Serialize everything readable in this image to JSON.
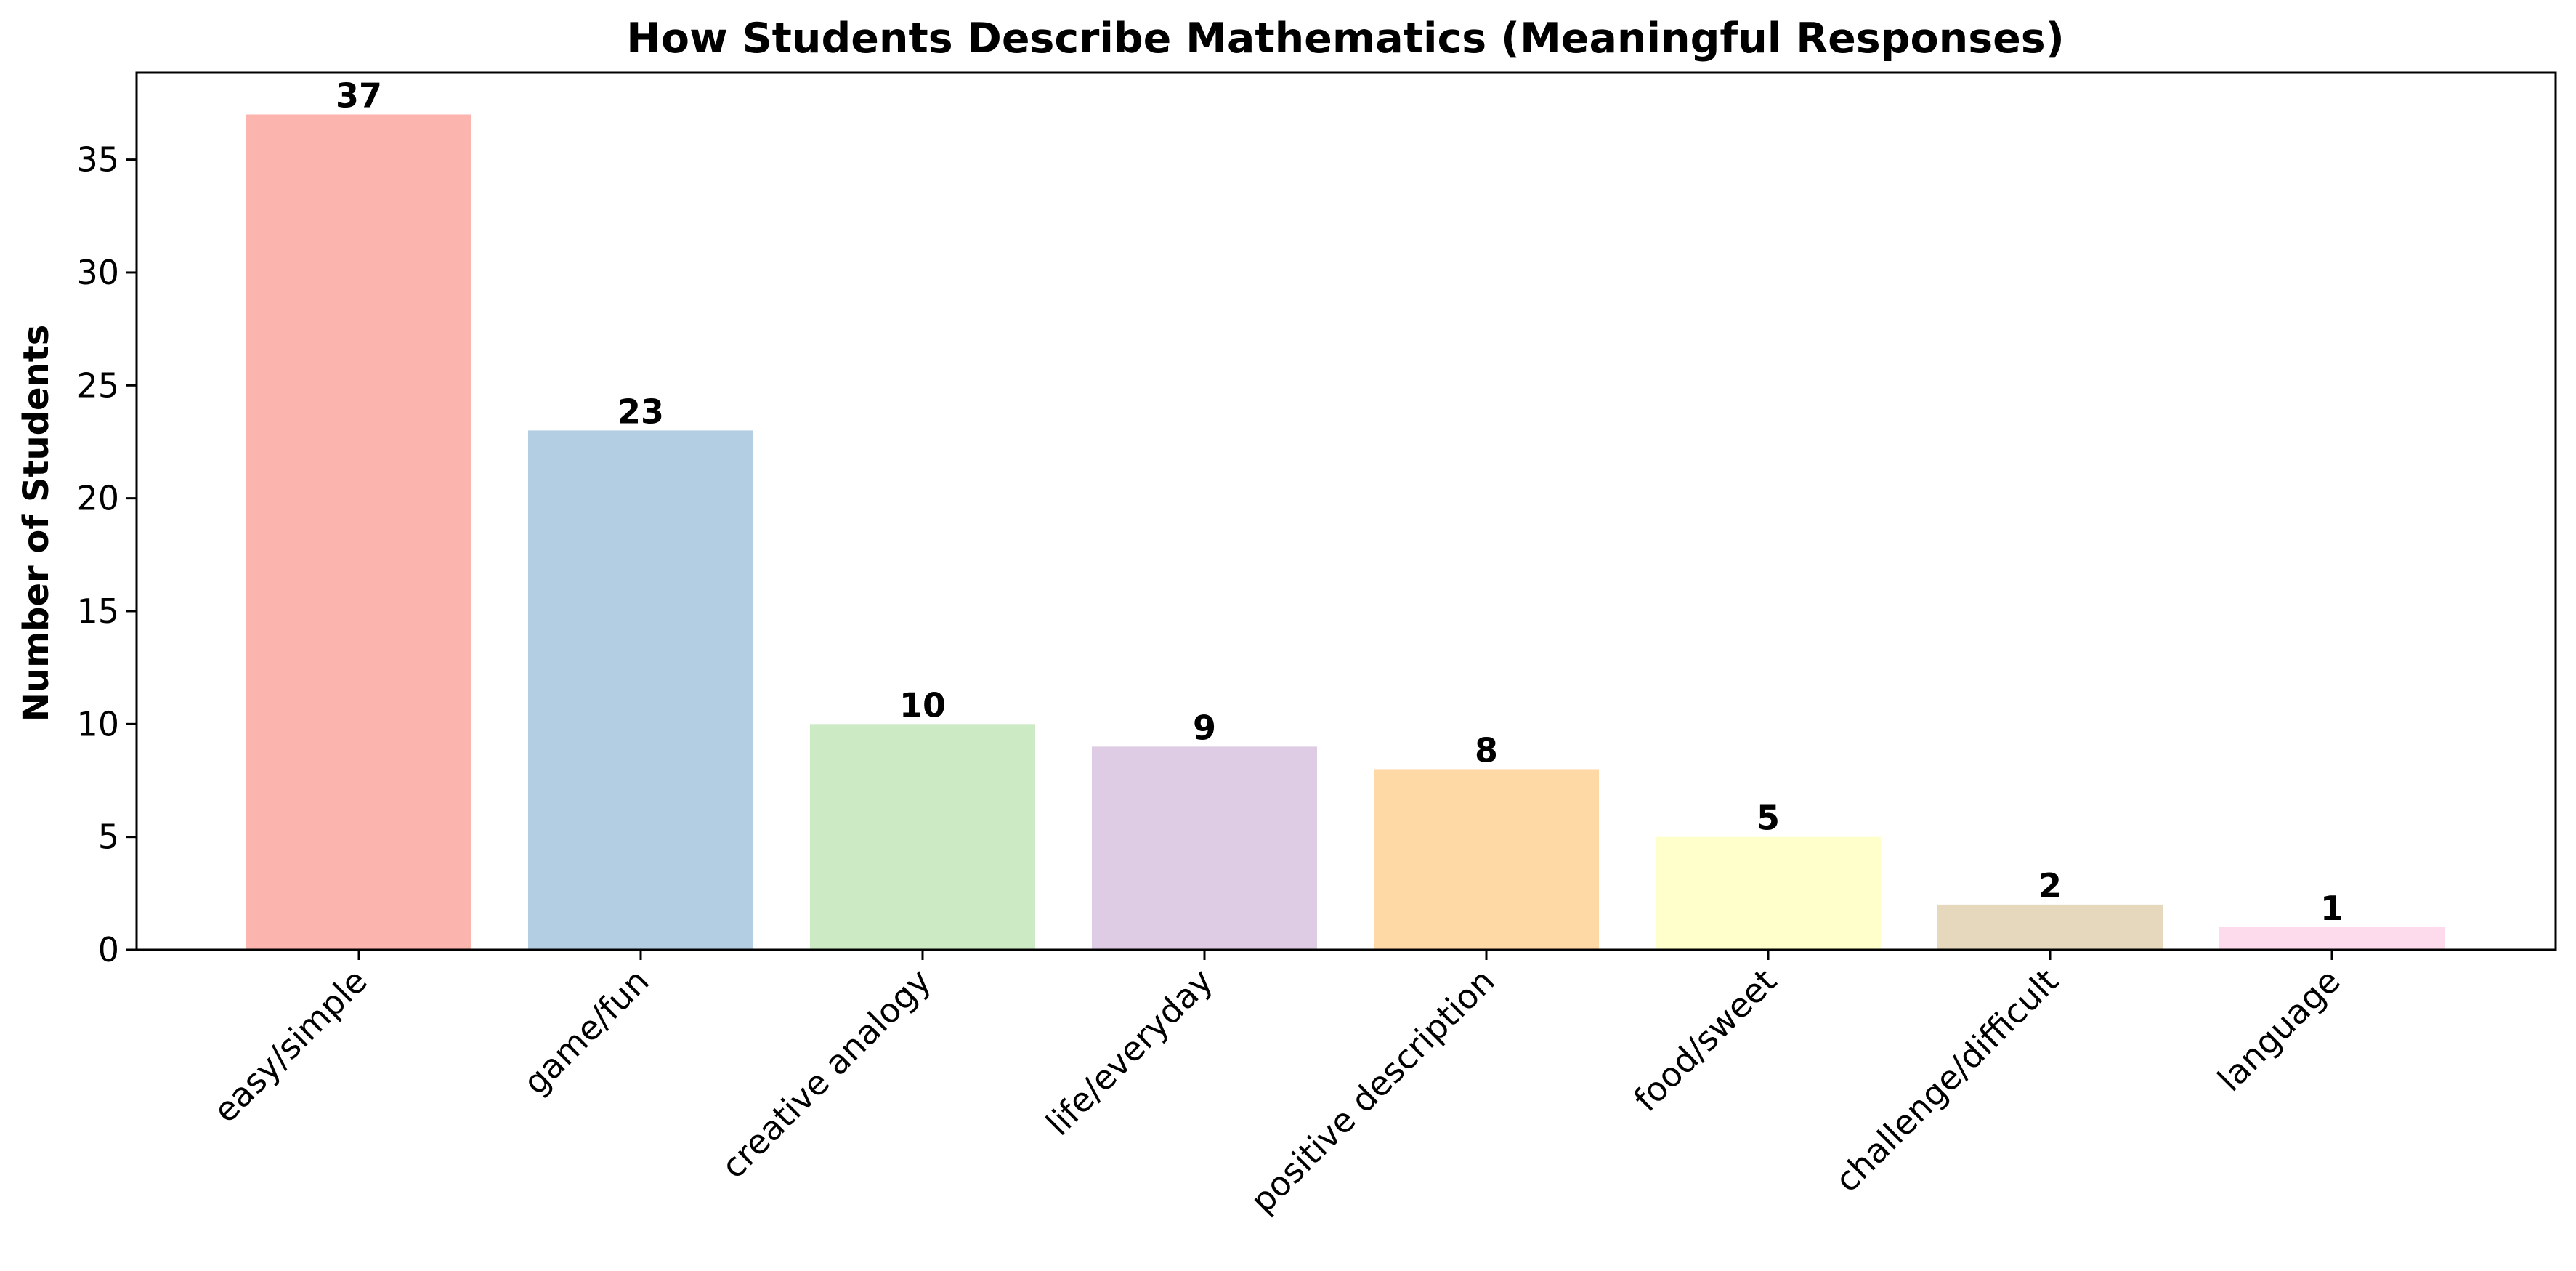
{
  "chart_data": {
    "type": "bar",
    "title": "How Students Describe Mathematics (Meaningful Responses)",
    "xlabel": "",
    "ylabel": "Number of Students",
    "categories": [
      "easy/simple",
      "game/fun",
      "creative analogy",
      "life/everyday",
      "positive description",
      "food/sweet",
      "challenge/difficult",
      "language"
    ],
    "values": [
      37,
      23,
      10,
      9,
      8,
      5,
      2,
      1
    ],
    "data_labels": [
      "37",
      "23",
      "10",
      "9",
      "8",
      "5",
      "2",
      "1"
    ],
    "colors": [
      "#fbb4ae",
      "#b3cde3",
      "#ccebc5",
      "#decbe4",
      "#fed9a6",
      "#ffffcc",
      "#e5d8bd",
      "#fddaec"
    ],
    "ylim": [
      0,
      38.85
    ],
    "yticks": [
      0,
      5,
      10,
      15,
      20,
      25,
      30,
      35
    ],
    "ytick_labels": [
      "0",
      "5",
      "10",
      "15",
      "20",
      "25",
      "30",
      "35"
    ],
    "xtick_rotation_deg": 45,
    "grid": false,
    "legend": "none"
  }
}
